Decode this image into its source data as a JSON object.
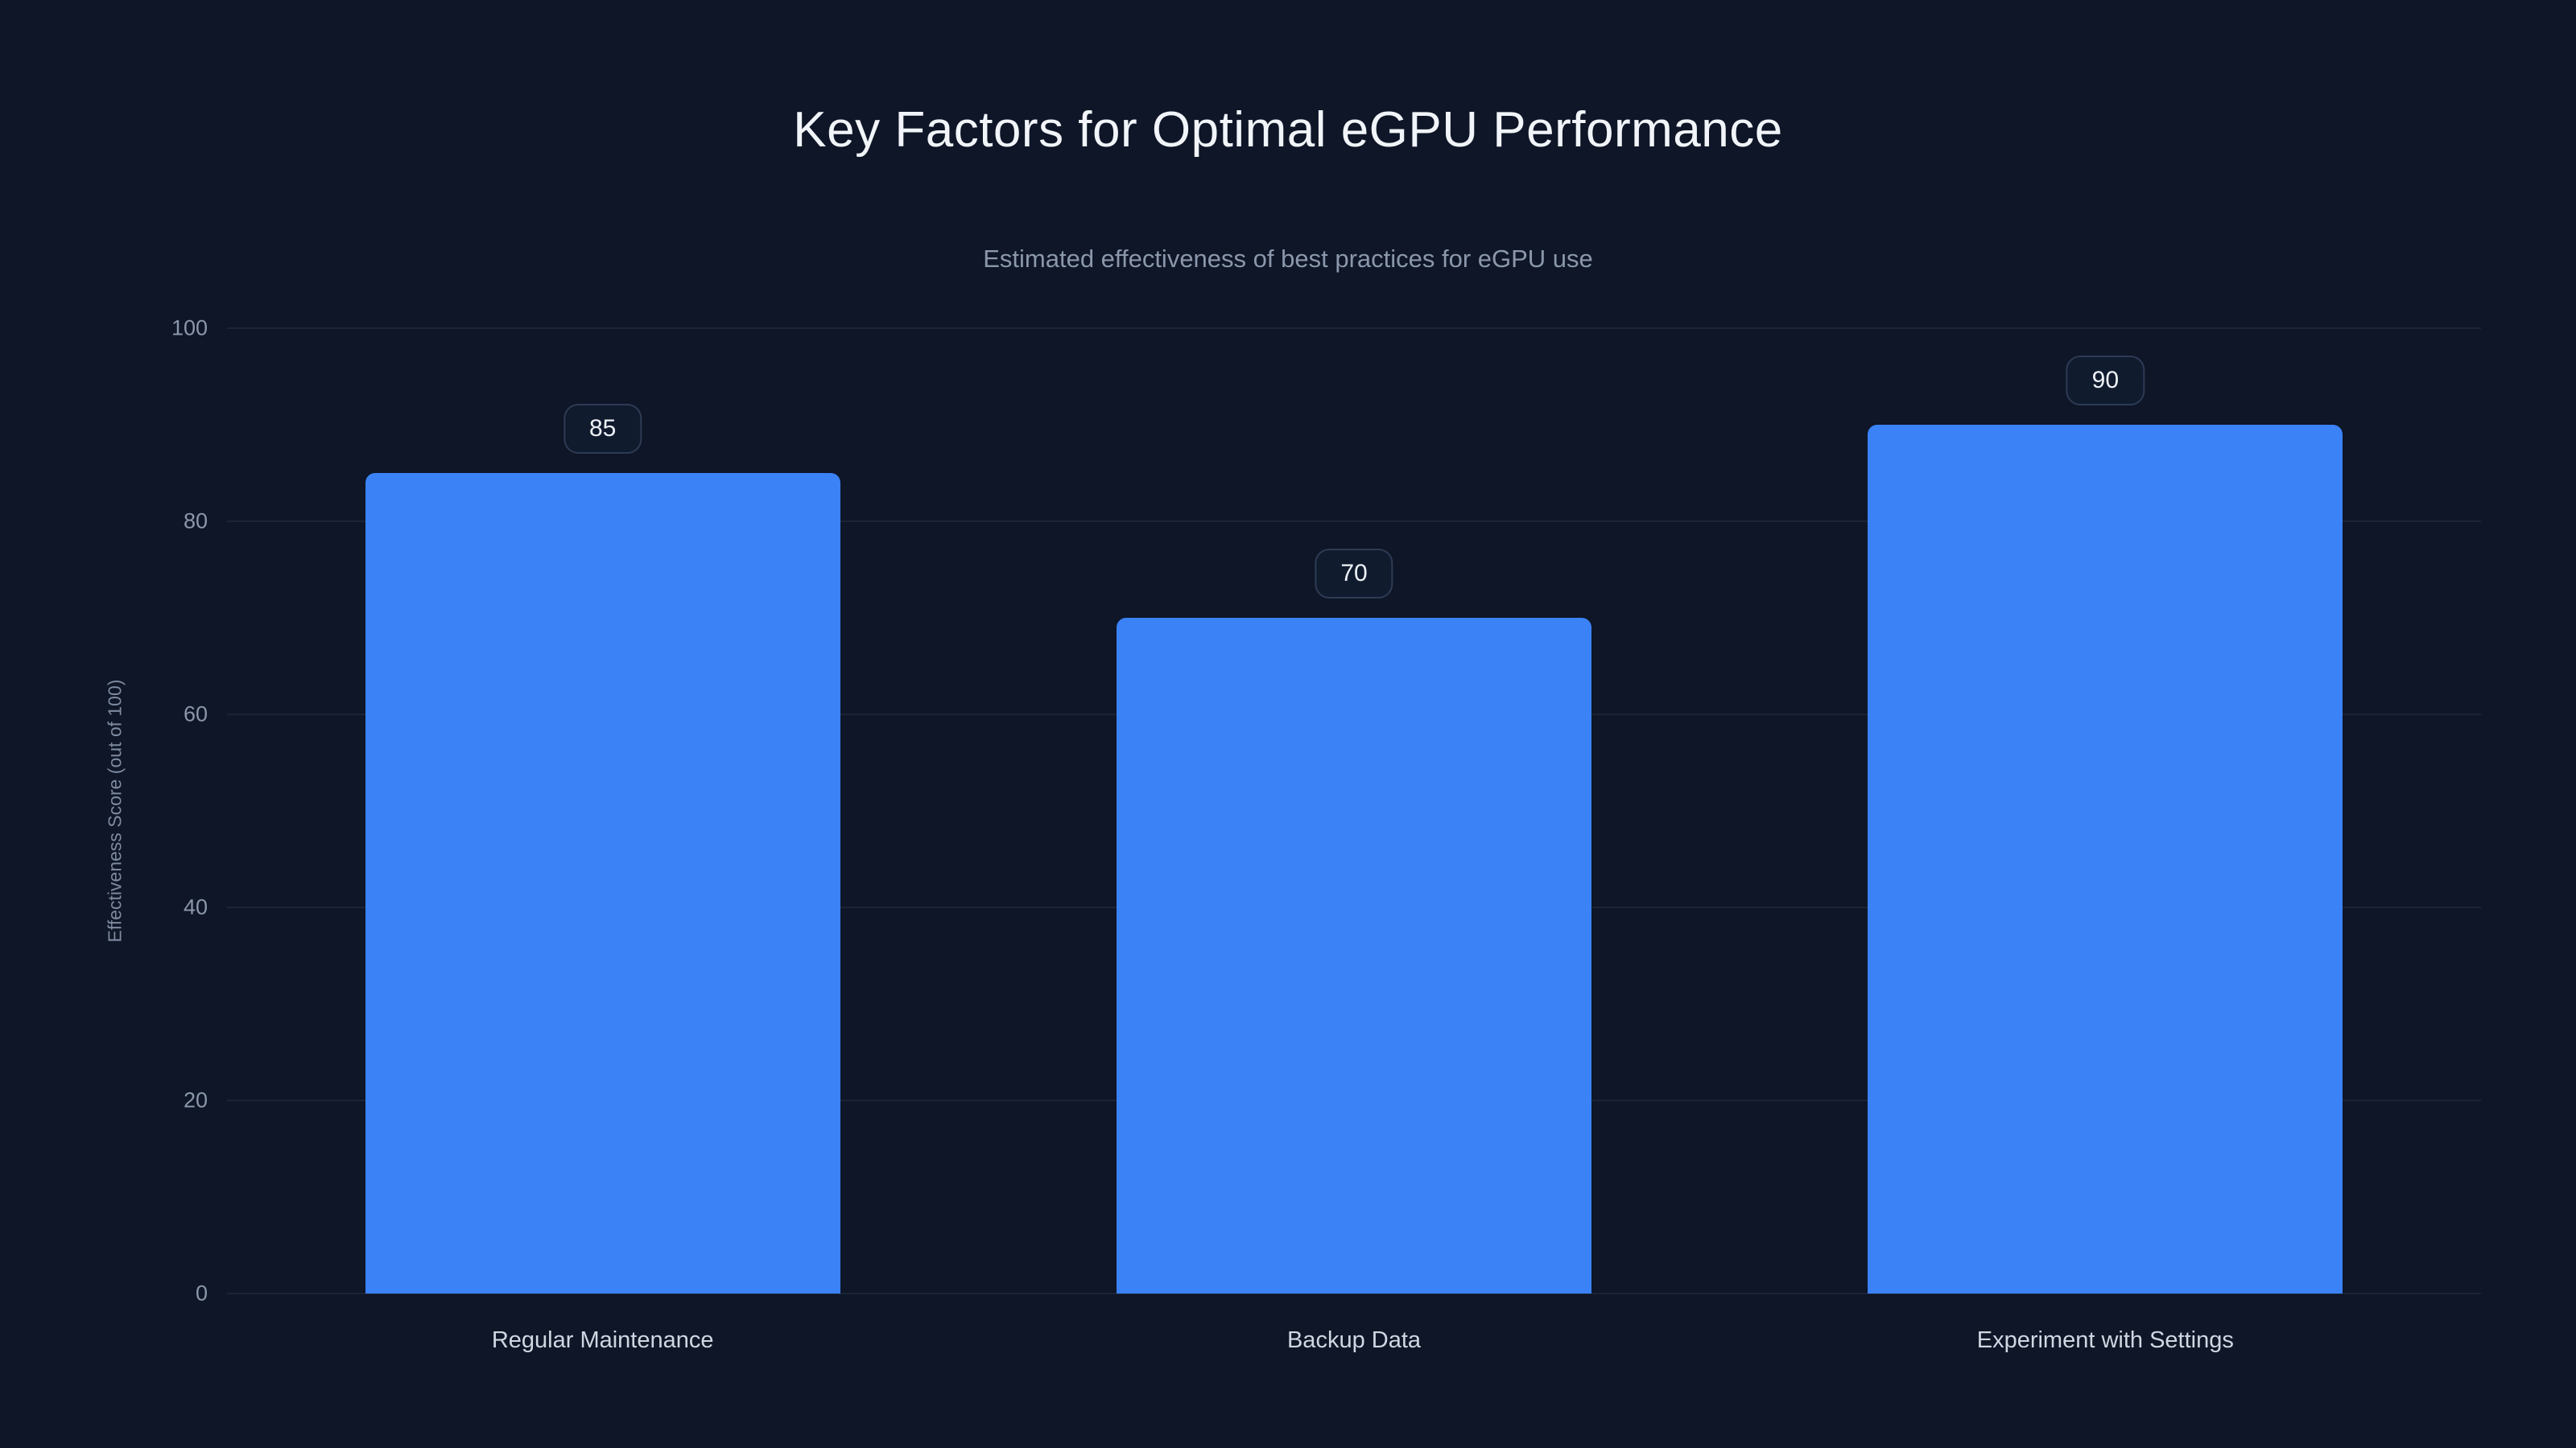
{
  "chart_data": {
    "type": "bar",
    "title": "Key Factors for Optimal eGPU Performance",
    "subtitle": "Estimated effectiveness of best practices for eGPU use",
    "ylabel": "Effectiveness Score (out of 100)",
    "xlabel": "",
    "categories": [
      "Regular Maintenance",
      "Backup Data",
      "Experiment with Settings"
    ],
    "values": [
      85,
      70,
      90
    ],
    "value_labels": [
      "85",
      "70",
      "90"
    ],
    "ylim": [
      0,
      100
    ],
    "yticks": [
      0,
      20,
      40,
      60,
      80,
      100
    ],
    "grid": "horizontal",
    "legend": "none",
    "bar_color": "#3b82f6",
    "background_color": "#0e1627",
    "gridline_color": "#1b2437",
    "title_color": "#f1f5f9",
    "subtitle_color": "#8b97ab"
  }
}
